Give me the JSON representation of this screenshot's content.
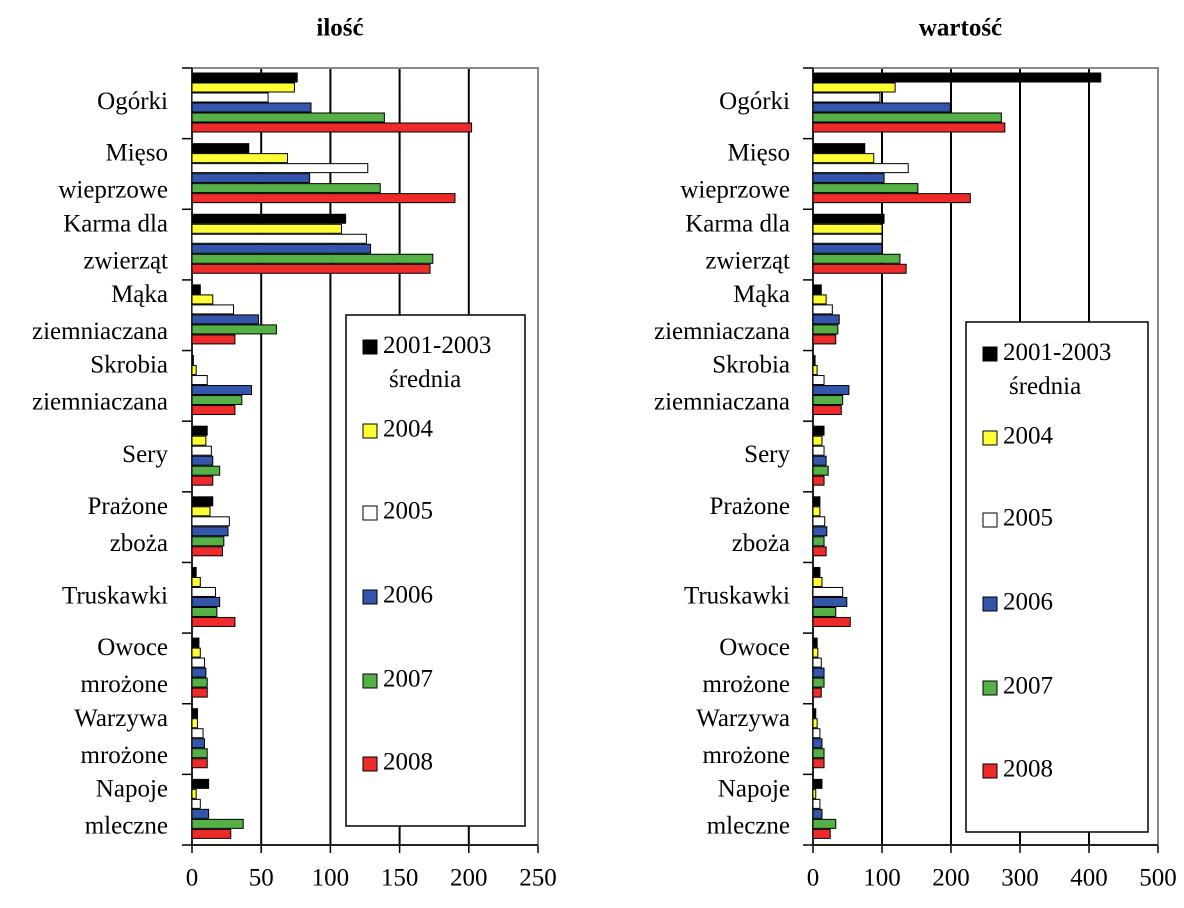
{
  "chart_data": [
    {
      "type": "bar",
      "title": "ilość",
      "categories": [
        [
          "Ogórki"
        ],
        [
          "Mięso",
          "wieprzowe"
        ],
        [
          "Karma dla",
          "zwierząt"
        ],
        [
          "Mąka",
          "ziemniaczana"
        ],
        [
          "Skrobia",
          "ziemniaczana"
        ],
        [
          "Sery"
        ],
        [
          "Prażone",
          "zboża"
        ],
        [
          "Truskawki"
        ],
        [
          "Owoce",
          "mrożone"
        ],
        [
          "Warzywa",
          "mrożone"
        ],
        [
          "Napoje",
          "mleczne"
        ]
      ],
      "series": [
        {
          "name": "2001-2003 średnia",
          "color": "#000000",
          "values": [
            76,
            41,
            111,
            6,
            1,
            11,
            15,
            3,
            5,
            4,
            12
          ]
        },
        {
          "name": "2004",
          "color": "#ffff33",
          "values": [
            74,
            69,
            108,
            15,
            3,
            10,
            13,
            6,
            6,
            4,
            3
          ]
        },
        {
          "name": "2005",
          "color": "#ffffff",
          "values": [
            55,
            127,
            126,
            30,
            11,
            14,
            27,
            17,
            9,
            8,
            6
          ]
        },
        {
          "name": "2006",
          "color": "#3355aa",
          "values": [
            86,
            85,
            129,
            48,
            43,
            15,
            26,
            20,
            10,
            9,
            12
          ]
        },
        {
          "name": "2007",
          "color": "#55b045",
          "values": [
            139,
            136,
            174,
            61,
            36,
            20,
            23,
            18,
            11,
            11,
            37
          ]
        },
        {
          "name": "2008",
          "color": "#ee2b2b",
          "values": [
            202,
            190,
            172,
            31,
            31,
            15,
            22,
            31,
            11,
            11,
            28
          ]
        }
      ],
      "xlim": [
        0,
        250
      ],
      "xticks": [
        0,
        50,
        100,
        150,
        200,
        250
      ],
      "grid": true
    },
    {
      "type": "bar",
      "title": "wartość",
      "categories": [
        [
          "Ogórki"
        ],
        [
          "Mięso",
          "wieprzowe"
        ],
        [
          "Karma dla",
          "zwierząt"
        ],
        [
          "Mąka",
          "ziemniaczana"
        ],
        [
          "Skrobia",
          "ziemniaczana"
        ],
        [
          "Sery"
        ],
        [
          "Prażone",
          "zboża"
        ],
        [
          "Truskawki"
        ],
        [
          "Owoce",
          "mrożone"
        ],
        [
          "Warzywa",
          "mrożone"
        ],
        [
          "Napoje",
          "mleczne"
        ]
      ],
      "series": [
        {
          "name": "2001-2003 średnia",
          "color": "#000000",
          "values": [
            417,
            75,
            103,
            12,
            3,
            16,
            10,
            10,
            6,
            4,
            13
          ]
        },
        {
          "name": "2004",
          "color": "#ffff33",
          "values": [
            119,
            88,
            100,
            19,
            6,
            13,
            10,
            13,
            7,
            6,
            4
          ]
        },
        {
          "name": "2005",
          "color": "#ffffff",
          "values": [
            97,
            138,
            100,
            28,
            16,
            16,
            17,
            43,
            12,
            10,
            10
          ]
        },
        {
          "name": "2006",
          "color": "#3355aa",
          "values": [
            199,
            103,
            100,
            38,
            52,
            19,
            20,
            49,
            16,
            13,
            13
          ]
        },
        {
          "name": "2007",
          "color": "#55b045",
          "values": [
            273,
            152,
            126,
            36,
            43,
            22,
            16,
            33,
            16,
            16,
            33
          ]
        },
        {
          "name": "2008",
          "color": "#ee2b2b",
          "values": [
            278,
            228,
            135,
            33,
            41,
            16,
            19,
            54,
            12,
            16,
            25
          ]
        }
      ],
      "xlim": [
        0,
        500
      ],
      "xticks": [
        0,
        100,
        200,
        300,
        400,
        500
      ],
      "grid": true
    }
  ]
}
